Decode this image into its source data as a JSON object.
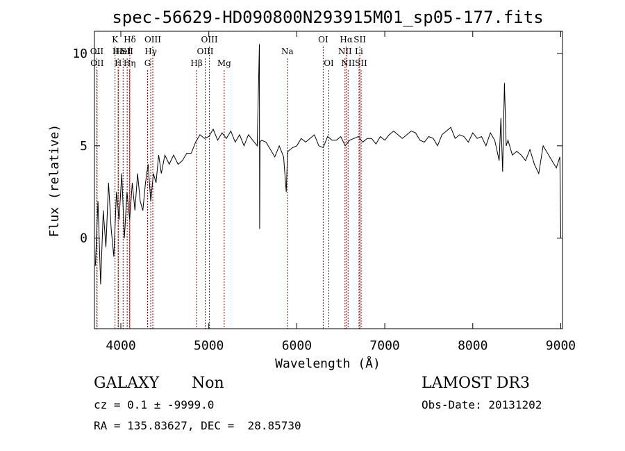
{
  "chart_data": {
    "type": "line",
    "title": "spec-56629-HD090800N293915M01_sp05-177.fits",
    "xlabel": "Wavelength (Å)",
    "ylabel": "Flux (relative)",
    "xlim": [
      3700,
      9020
    ],
    "ylim": [
      -4.9,
      11.2
    ],
    "x_ticks": [
      4000,
      5000,
      6000,
      7000,
      8000,
      9000
    ],
    "x_tick_labels": [
      "4000",
      "5000",
      "6000",
      "7000",
      "8000",
      "9000"
    ],
    "y_ticks": [
      0,
      5,
      10
    ],
    "y_tick_labels": [
      "0",
      "5",
      "10"
    ],
    "grid": false,
    "line_color": "#000000",
    "marker_color": "#8b0000",
    "series": [
      {
        "x": [
          3710,
          3740,
          3770,
          3800,
          3830,
          3860,
          3890,
          3920,
          3950,
          3980,
          4010,
          4040,
          4070,
          4100,
          4130,
          4160,
          4190,
          4220,
          4250,
          4280,
          4310,
          4340,
          4370,
          4400,
          4430,
          4460,
          4500,
          4550,
          4600,
          4650,
          4700,
          4750,
          4800,
          4850,
          4900,
          4950,
          5000,
          5050,
          5100,
          5150,
          5200,
          5250,
          5300,
          5350,
          5400,
          5450,
          5500,
          5550,
          5575,
          5578,
          5582,
          5600,
          5650,
          5700,
          5750,
          5800,
          5850,
          5880,
          5890,
          5900,
          5950,
          6000,
          6050,
          6100,
          6150,
          6200,
          6250,
          6300,
          6350,
          6400,
          6450,
          6500,
          6550,
          6600,
          6650,
          6700,
          6750,
          6800,
          6850,
          6900,
          6950,
          7000,
          7050,
          7100,
          7150,
          7200,
          7250,
          7300,
          7350,
          7400,
          7450,
          7500,
          7550,
          7600,
          7650,
          7700,
          7750,
          7800,
          7850,
          7900,
          7950,
          8000,
          8050,
          8100,
          8150,
          8200,
          8250,
          8300,
          8320,
          8340,
          8360,
          8380,
          8400,
          8450,
          8500,
          8550,
          8600,
          8650,
          8700,
          8750,
          8800,
          8850,
          8900,
          8950,
          8990,
          9000
        ],
        "y": [
          -1.5,
          2.0,
          -2.5,
          1.5,
          -0.5,
          3.0,
          0.5,
          -1.0,
          2.5,
          1.0,
          3.5,
          0.0,
          2.5,
          1.0,
          3.0,
          1.5,
          3.5,
          2.0,
          1.5,
          3.0,
          4.0,
          2.0,
          3.5,
          3.0,
          4.5,
          3.5,
          4.5,
          4.0,
          4.5,
          4.0,
          4.2,
          4.6,
          4.6,
          5.2,
          5.6,
          5.4,
          5.5,
          5.9,
          5.3,
          5.7,
          5.4,
          5.8,
          5.2,
          5.6,
          5.0,
          5.6,
          5.3,
          5.0,
          10.5,
          0.5,
          5.2,
          5.3,
          5.2,
          4.8,
          4.4,
          5.0,
          4.4,
          2.5,
          4.0,
          4.7,
          4.9,
          5.0,
          5.4,
          5.2,
          5.4,
          5.6,
          5.0,
          4.9,
          5.5,
          5.3,
          5.3,
          5.5,
          5.0,
          5.3,
          5.4,
          5.5,
          5.2,
          5.4,
          5.4,
          5.1,
          5.5,
          5.3,
          5.6,
          5.8,
          5.6,
          5.4,
          5.6,
          5.8,
          5.7,
          5.3,
          5.2,
          5.5,
          5.4,
          5.0,
          5.6,
          5.8,
          6.0,
          5.4,
          5.6,
          5.5,
          5.2,
          5.7,
          5.4,
          5.5,
          5.0,
          5.7,
          5.3,
          4.2,
          6.5,
          3.6,
          8.4,
          5.0,
          5.3,
          4.5,
          4.7,
          4.5,
          4.2,
          4.8,
          4.0,
          3.5,
          5.0,
          4.6,
          4.2,
          3.8,
          4.4,
          0.0
        ]
      }
    ],
    "line_markers": [
      {
        "x": 3727,
        "labels": [
          "OII"
        ],
        "rows": [
          1
        ]
      },
      {
        "x": 3730,
        "labels": [
          "OII"
        ],
        "rows": [
          2
        ]
      },
      {
        "x": 3970,
        "labels": [
          "Hε"
        ],
        "rows": [
          1
        ]
      },
      {
        "x": 3970,
        "labels": [
          "H"
        ],
        "rows": [
          2
        ]
      },
      {
        "x": 4102,
        "labels": [
          "Hδ"
        ],
        "rows": [
          0
        ]
      },
      {
        "x": 4026,
        "labels": [
          "HeI"
        ],
        "rows": [
          1
        ]
      },
      {
        "x": 4100,
        "labels": [
          "Hη"
        ],
        "rows": [
          2
        ]
      },
      {
        "x": 3934,
        "labels": [
          "K"
        ],
        "rows": [
          0
        ]
      },
      {
        "x": 4072,
        "labels": [
          "SII"
        ],
        "rows": [
          1
        ]
      },
      {
        "x": 4340,
        "labels": [
          "Hγ"
        ],
        "rows": [
          1
        ]
      },
      {
        "x": 4304,
        "labels": [
          "G"
        ],
        "rows": [
          2
        ]
      },
      {
        "x": 4363,
        "labels": [
          "OIII"
        ],
        "rows": [
          0
        ]
      },
      {
        "x": 4861,
        "labels": [
          "Hβ"
        ],
        "rows": [
          2
        ]
      },
      {
        "x": 4959,
        "labels": [
          "OIII"
        ],
        "rows": [
          1
        ]
      },
      {
        "x": 5007,
        "labels": [
          "OIII"
        ],
        "rows": [
          0
        ]
      },
      {
        "x": 5175,
        "labels": [
          "Mg"
        ],
        "rows": [
          2
        ]
      },
      {
        "x": 5893,
        "labels": [
          "Na"
        ],
        "rows": [
          1
        ]
      },
      {
        "x": 6300,
        "labels": [
          "OI"
        ],
        "rows": [
          0
        ]
      },
      {
        "x": 6364,
        "labels": [
          "OI"
        ],
        "rows": [
          2
        ]
      },
      {
        "x": 6548,
        "labels": [
          "NII"
        ],
        "rows": [
          1
        ]
      },
      {
        "x": 6563,
        "labels": [
          "Hα"
        ],
        "rows": [
          0
        ]
      },
      {
        "x": 6583,
        "labels": [
          "NII"
        ],
        "rows": [
          2
        ]
      },
      {
        "x": 6707,
        "labels": [
          "Li"
        ],
        "rows": [
          1
        ]
      },
      {
        "x": 6716,
        "labels": [
          "SII"
        ],
        "rows": [
          0
        ]
      },
      {
        "x": 6731,
        "labels": [
          "SII"
        ],
        "rows": [
          2
        ]
      }
    ]
  },
  "footer": {
    "class_label": "GALAXY",
    "subclass_label": "Non",
    "cz_line": "cz = 0.1 ± -9999.0",
    "coords_line": "RA = 135.83627, DEC =  28.85730",
    "survey": "LAMOST DR3",
    "obs_date": "Obs-Date: 20131202"
  }
}
